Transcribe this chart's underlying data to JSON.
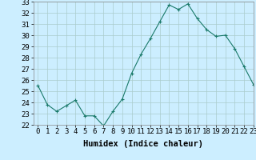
{
  "x": [
    0,
    1,
    2,
    3,
    4,
    5,
    6,
    7,
    8,
    9,
    10,
    11,
    12,
    13,
    14,
    15,
    16,
    17,
    18,
    19,
    20,
    21,
    22,
    23
  ],
  "y": [
    25.5,
    23.8,
    23.2,
    23.7,
    24.2,
    22.8,
    22.8,
    21.9,
    23.2,
    24.3,
    26.6,
    28.3,
    29.7,
    31.2,
    32.7,
    32.3,
    32.8,
    31.5,
    30.5,
    29.9,
    30.0,
    28.8,
    27.2,
    25.6
  ],
  "xlabel": "Humidex (Indice chaleur)",
  "ylim": [
    22,
    33
  ],
  "xlim": [
    -0.5,
    23
  ],
  "yticks": [
    22,
    23,
    24,
    25,
    26,
    27,
    28,
    29,
    30,
    31,
    32,
    33
  ],
  "xticks": [
    0,
    1,
    2,
    3,
    4,
    5,
    6,
    7,
    8,
    9,
    10,
    11,
    12,
    13,
    14,
    15,
    16,
    17,
    18,
    19,
    20,
    21,
    22,
    23
  ],
  "line_color": "#1a7a6a",
  "marker": "+",
  "bg_color": "#cceeff",
  "grid_color": "#aacccc",
  "xlabel_fontsize": 7.5,
  "tick_fontsize": 6.5
}
